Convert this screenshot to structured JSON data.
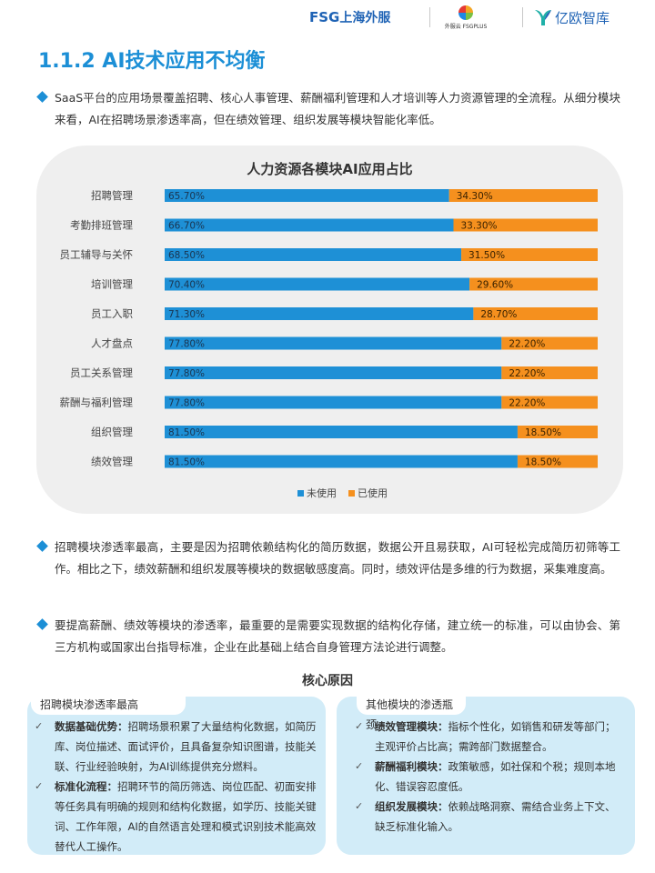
{
  "header": {
    "logo1_a": "FSG",
    "logo1_b": "上海外服",
    "logo2": "外服云 FSGPLUS",
    "logo3": "亿欧智库"
  },
  "section_title": "1.1.2 AI技术应用不均衡",
  "paragraphs": [
    "SaaS平台的应用场景覆盖招聘、核心人事管理、薪酬福利管理和人才培训等人力资源管理的全流程。从细分模块来看，AI在招聘场景渗透率高，但在绩效管理、组织发展等模块智能化率低。",
    "招聘模块渗透率最高，主要是因为招聘依赖结构化的简历数据，数据公开且易获取，AI可轻松完成简历初筛等工作。相比之下，绩效薪酬和组织发展等模块的数据敏感度高。同时，绩效评估是多维的行为数据，采集难度高。",
    "要提高薪酬、绩效等模块的渗透率，最重要的是需要实现数据的结构化存储，建立统一的标准，可以由协会、第三方机构或国家出台指导标准，企业在此基础上结合自身管理方法论进行调整。"
  ],
  "chart_data": {
    "type": "bar",
    "stacked": true,
    "orientation": "horizontal",
    "title": "人力资源各模块AI应用占比",
    "categories": [
      "招聘管理",
      "考勤排班管理",
      "员工辅导与关怀",
      "培训管理",
      "员工入职",
      "人才盘点",
      "员工关系管理",
      "薪酬与福利管理",
      "组织管理",
      "绩效管理"
    ],
    "series": [
      {
        "name": "未使用",
        "color": "#1e90d6",
        "values": [
          65.7,
          66.7,
          68.5,
          70.4,
          71.3,
          77.8,
          77.8,
          77.8,
          81.5,
          81.5
        ],
        "labels": [
          "65.70%",
          "66.70%",
          "68.50%",
          "70.40%",
          "71.30%",
          "77.80%",
          "77.80%",
          "77.80%",
          "81.50%",
          "81.50%"
        ]
      },
      {
        "name": "已使用",
        "color": "#f5901e",
        "values": [
          34.3,
          33.3,
          31.5,
          29.6,
          28.7,
          22.2,
          22.2,
          22.2,
          18.5,
          18.5
        ],
        "labels": [
          "34.30%",
          "33.30%",
          "31.50%",
          "29.60%",
          "28.70%",
          "22.20%",
          "22.20%",
          "22.20%",
          "18.50%",
          "18.50%"
        ]
      }
    ],
    "xlim": [
      0,
      100
    ],
    "legend_position": "bottom"
  },
  "core_title": "核心原因",
  "left_box": {
    "heading": "招聘模块渗透率最高",
    "items": [
      {
        "bold": "数据基础优势：",
        "text": "招聘场景积累了大量结构化数据，如简历库、岗位描述、面试评价，且具备复杂知识图谱，技能关联、行业经验映射，为AI训练提供充分燃料。"
      },
      {
        "bold": "标准化流程：",
        "text": "招聘环节的简历筛选、岗位匹配、初面安排等任务具有明确的规则和结构化数据，如学历、技能关键词、工作年限，AI的自然语言处理和模式识别技术能高效替代人工操作。"
      }
    ]
  },
  "right_box": {
    "heading": "其他模块的渗透瓶颈",
    "items": [
      {
        "bold": "绩效管理模块：",
        "text": "指标个性化，如销售和研发等部门；主观评价占比高；需跨部门数据整合。"
      },
      {
        "bold": "薪酬福利模块：",
        "text": "政策敏感，如社保和个税；规则本地化、错误容忍度低。"
      },
      {
        "bold": "组织发展模块：",
        "text": "依赖战略洞察、需结合业务上下文、缺乏标准化输入。"
      }
    ]
  },
  "check_glyph": "✓"
}
